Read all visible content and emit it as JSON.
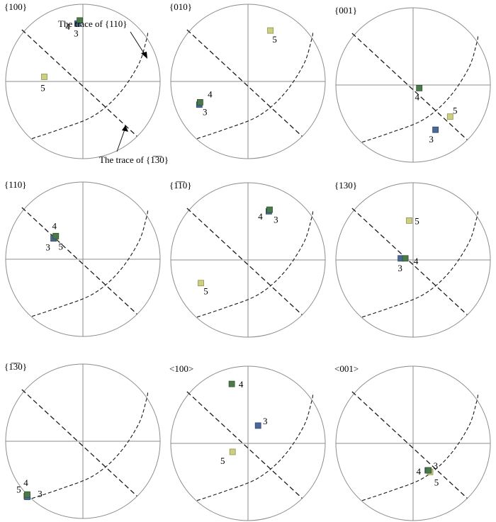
{
  "colors": {
    "point_3": "#4a6896",
    "point_4": "#4a7a4a",
    "point_5": "#cccf82",
    "point_3_stroke": "#2f4870",
    "point_4_stroke": "#2e562e",
    "point_5_stroke": "#8f9150"
  },
  "annotations": {
    "trace_110": "The trace of {110}",
    "trace_1bar30": "The trace of {1̅3̅0}"
  },
  "panels": [
    {
      "title": "{100}",
      "points": [
        {
          "id": "3",
          "label": "3",
          "x": -0.07,
          "y": 0.75
        },
        {
          "id": "4",
          "label": "4",
          "x": -0.04,
          "y": 0.79
        },
        {
          "id": "5",
          "label": "5",
          "x": -0.5,
          "y": 0.06
        }
      ]
    },
    {
      "title": "{010}",
      "points": [
        {
          "id": "3",
          "label": "3",
          "x": -0.63,
          "y": -0.3
        },
        {
          "id": "4",
          "label": "4",
          "x": -0.62,
          "y": -0.27
        },
        {
          "id": "5",
          "label": "5",
          "x": 0.29,
          "y": 0.66
        }
      ]
    },
    {
      "title": "{001}",
      "points": [
        {
          "id": "3",
          "label": "3",
          "x": 0.29,
          "y": -0.58
        },
        {
          "id": "4",
          "label": "4",
          "x": 0.08,
          "y": -0.04
        },
        {
          "id": "5",
          "label": "5",
          "x": 0.48,
          "y": -0.41
        }
      ]
    },
    {
      "title": "{110}",
      "points": [
        {
          "id": "3",
          "label": "3",
          "x": -0.38,
          "y": 0.27
        },
        {
          "id": "4",
          "label": "4",
          "x": -0.35,
          "y": 0.3
        },
        {
          "id": "5",
          "label": "5",
          "x": -0.36,
          "y": 0.29
        }
      ]
    },
    {
      "title": "{1̅1̅0}",
      "points": [
        {
          "id": "3",
          "label": "3",
          "x": 0.27,
          "y": 0.63
        },
        {
          "id": "4",
          "label": "4",
          "x": 0.28,
          "y": 0.65
        },
        {
          "id": "5",
          "label": "5",
          "x": -0.61,
          "y": -0.3
        }
      ]
    },
    {
      "title": "{130}",
      "points": [
        {
          "id": "3",
          "label": "3",
          "x": -0.16,
          "y": 0.02
        },
        {
          "id": "4",
          "label": "4",
          "x": -0.1,
          "y": 0.02
        },
        {
          "id": "5",
          "label": "5",
          "x": -0.05,
          "y": 0.51
        }
      ]
    },
    {
      "title": "{1̅3̅0}",
      "points": [
        {
          "id": "3",
          "label": "3",
          "x": -0.72,
          "y": -0.72
        },
        {
          "id": "4",
          "label": "4",
          "x": -0.72,
          "y": -0.69
        },
        {
          "id": "5",
          "label": "5",
          "x": -0.73,
          "y": -0.71
        }
      ]
    },
    {
      "title": "<100>",
      "points": [
        {
          "id": "3",
          "label": "3",
          "x": 0.13,
          "y": 0.23
        },
        {
          "id": "4",
          "label": "4",
          "x": -0.21,
          "y": 0.77
        },
        {
          "id": "5",
          "label": "5",
          "x": -0.2,
          "y": -0.11
        }
      ]
    },
    {
      "title": "<001>",
      "points": [
        {
          "id": "3",
          "label": "3",
          "x": 0.19,
          "y": -0.35
        },
        {
          "id": "4",
          "label": "4",
          "x": 0.2,
          "y": -0.35
        },
        {
          "id": "5",
          "label": "5",
          "x": 0.22,
          "y": -0.37
        }
      ]
    }
  ]
}
